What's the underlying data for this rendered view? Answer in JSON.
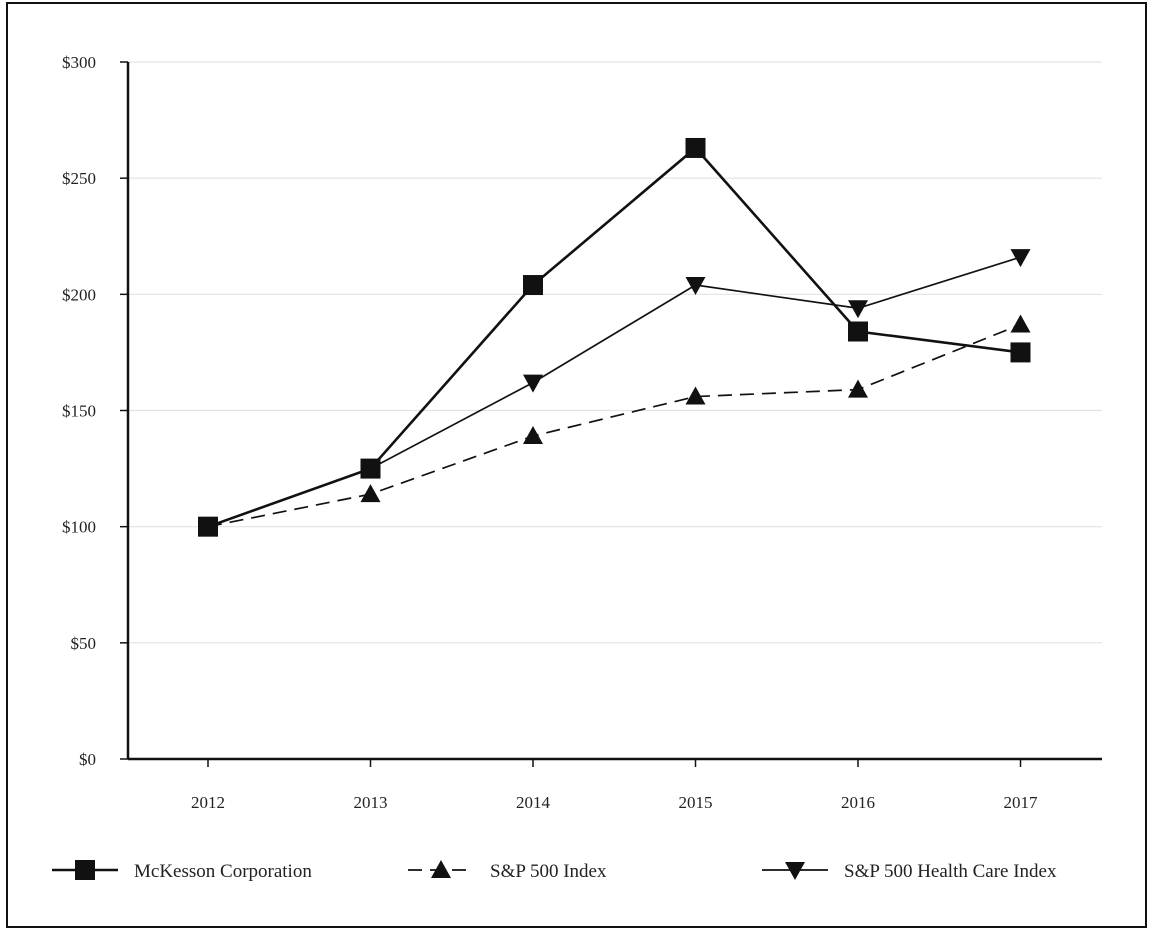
{
  "chart_data": {
    "type": "line",
    "title": "",
    "xlabel": "",
    "ylabel": "",
    "categories": [
      "2012",
      "2013",
      "2014",
      "2015",
      "2016",
      "2017"
    ],
    "ylim": [
      0,
      300
    ],
    "yticks": [
      0,
      50,
      100,
      150,
      200,
      250,
      300
    ],
    "ytick_labels": [
      "$0",
      "$50",
      "$100",
      "$150",
      "$200",
      "$250",
      "$300"
    ],
    "grid": true,
    "legend_position": "bottom",
    "series": [
      {
        "name": "McKesson Corporation",
        "marker": "square",
        "line_style": "solid",
        "line_width": "thick",
        "color": "#111111",
        "values": [
          100,
          125,
          204,
          263,
          184,
          175
        ]
      },
      {
        "name": "S&P 500 Index",
        "marker": "triangle-up",
        "line_style": "dashed",
        "line_width": "thin",
        "color": "#111111",
        "values": [
          100,
          114,
          139,
          156,
          159,
          187
        ]
      },
      {
        "name": "S&P 500 Health Care Index",
        "marker": "triangle-down",
        "line_style": "solid",
        "line_width": "thin",
        "color": "#111111",
        "values": [
          100,
          125,
          162,
          204,
          194,
          216
        ]
      }
    ]
  }
}
